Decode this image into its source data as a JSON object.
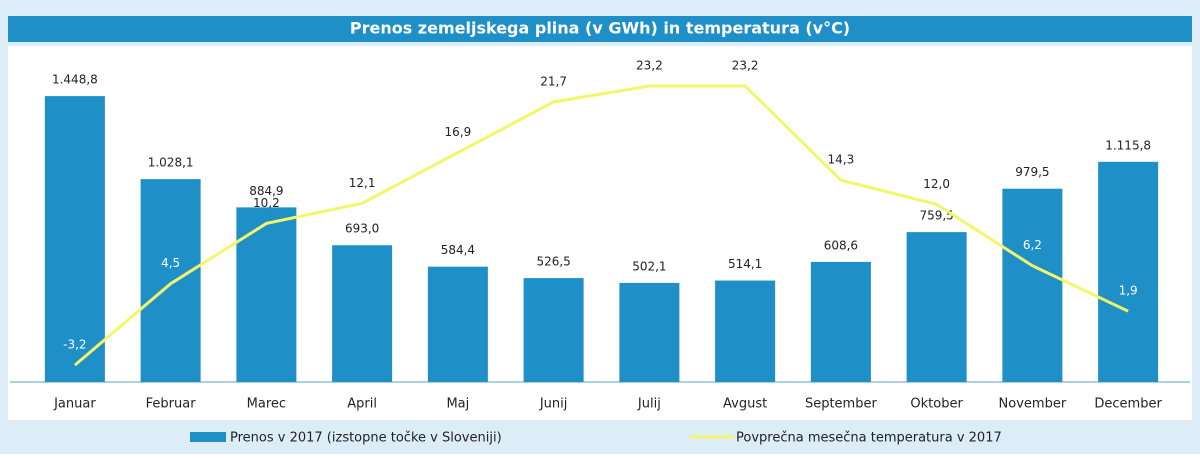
{
  "chart_data": {
    "type": "bar-line",
    "title": "Prenos zemeljskega plina (v GWh) in temperatura (v°C)",
    "categories": [
      "Januar",
      "Februar",
      "Marec",
      "April",
      "Maj",
      "Junij",
      "Julij",
      "Avgust",
      "September",
      "Oktober",
      "November",
      "December"
    ],
    "series": [
      {
        "name": "Prenos v 2017 (izstopne točke v Sloveniji)",
        "type": "bar",
        "color": "#1f8fc8",
        "values": [
          1448.8,
          1028.1,
          884.9,
          693.0,
          584.4,
          526.5,
          502.1,
          514.1,
          608.6,
          759.5,
          979.5,
          1115.8
        ],
        "value_labels": [
          "1.448,8",
          "1.028,1",
          "884,9",
          "693,0",
          "584,4",
          "526,5",
          "502,1",
          "514,1",
          "608,6",
          "759,5",
          "979,5",
          "1.115,8"
        ]
      },
      {
        "name": "Povprečna mesečna temperatura v 2017",
        "type": "line",
        "color": "#f5f56a",
        "axis": "y2",
        "values": [
          -3.2,
          4.5,
          10.2,
          12.1,
          16.9,
          21.7,
          23.2,
          23.2,
          14.3,
          12.0,
          6.2,
          1.9
        ],
        "value_labels": [
          "-3,2",
          "4,5",
          "10,2",
          "12,1",
          "16,9",
          "21,7",
          "23,2",
          "23,2",
          "14,3",
          "12,0",
          "6,2",
          "1,9"
        ]
      }
    ],
    "ylim": [
      0,
      1500
    ],
    "y2lim": [
      -4.8,
      23.2
    ],
    "legend": "bottom"
  }
}
